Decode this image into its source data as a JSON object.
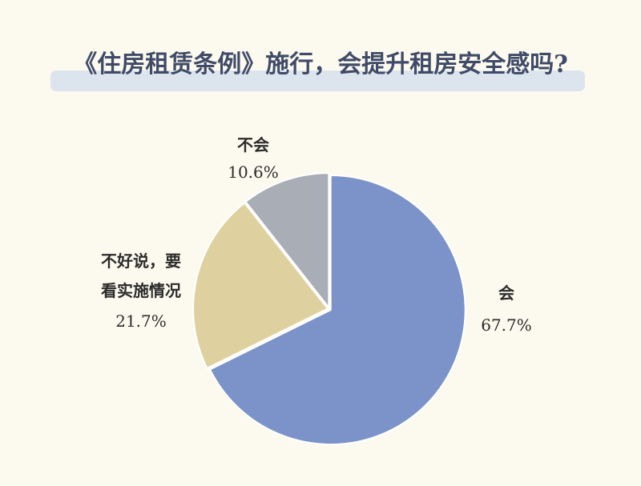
{
  "title": "《住房租赁条例》施行，会提升租房安全感吗?",
  "colors": {
    "background": "#fcfaee",
    "title": "#3f4b68",
    "title_highlight": "#dce5ed",
    "separator": "#ffffff"
  },
  "chart_data": {
    "type": "pie",
    "title": "《住房租赁条例》施行，会提升租房安全感吗?",
    "unit": "%",
    "start_angle": "12 o'clock, clockwise",
    "slices": [
      {
        "label_lines": [
          "会"
        ],
        "value": 67.7,
        "color": "#7b93c9"
      },
      {
        "label_lines": [
          "不好说，要",
          "看实施情况"
        ],
        "value": 21.7,
        "color": "#ded19f"
      },
      {
        "label_lines": [
          "不会"
        ],
        "value": 10.6,
        "color": "#a9adb6"
      }
    ]
  }
}
